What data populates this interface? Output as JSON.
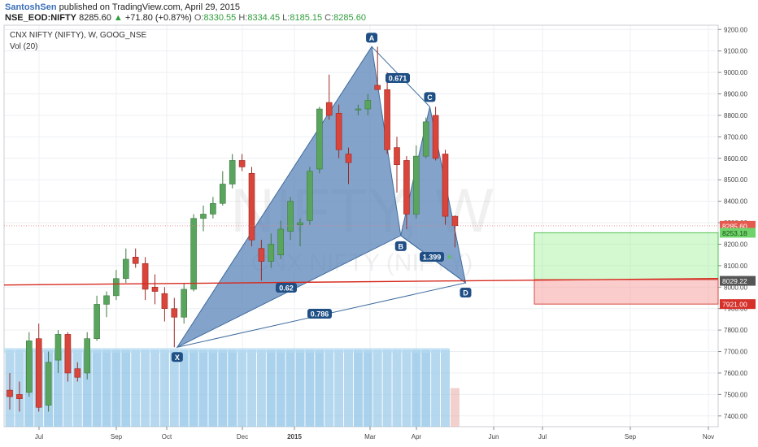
{
  "header": {
    "author": "SantoshSen",
    "published_text": "published on TradingView.com, April 29, 2015",
    "symbol": "NSE_EOD:NIFTY",
    "price": "8285.60",
    "change": "+71.80 (+0.87%)",
    "o_label": "O:",
    "o_value": "8330.55",
    "h_label": "H:",
    "h_value": "8334.45",
    "l_label": "L:",
    "l_value": "8185.15",
    "c_label": "C:",
    "c_value": "8285.60"
  },
  "legend": {
    "title": "CNX NIFTY (NIFTY), W, GOOG_NSE",
    "vol": "Vol (20)"
  },
  "watermark": {
    "big": "NIFTY, W",
    "small": "CNX NIFTY (NIFTY)"
  },
  "colors": {
    "up": "#5aa55e",
    "down": "#d9443b",
    "pattern": "#5b84b8",
    "support": "#d62a1e"
  },
  "chart_data": {
    "type": "candlestick",
    "ylim": [
      7350,
      9220
    ],
    "y_ticks": [
      "7400.00",
      "7500.00",
      "7600.00",
      "7700.00",
      "7800.00",
      "7900.00",
      "8000.00",
      "8100.00",
      "8200.00",
      "8300.00",
      "8400.00",
      "8500.00",
      "8600.00",
      "8700.00",
      "8800.00",
      "8900.00",
      "9000.00",
      "9100.00",
      "9200.00"
    ],
    "x_ticks": [
      "Jul",
      "Sep",
      "Oct",
      "Dec",
      "2015",
      "Mar",
      "Apr",
      "Jun",
      "Jul",
      "Sep",
      "Nov"
    ],
    "candles": [
      {
        "o": 7520,
        "h": 7600,
        "l": 7430,
        "c": 7490
      },
      {
        "o": 7500,
        "h": 7560,
        "l": 7420,
        "c": 7480
      },
      {
        "o": 7510,
        "h": 7790,
        "l": 7490,
        "c": 7750
      },
      {
        "o": 7760,
        "h": 7830,
        "l": 7420,
        "c": 7440
      },
      {
        "o": 7450,
        "h": 7700,
        "l": 7420,
        "c": 7650
      },
      {
        "o": 7660,
        "h": 7800,
        "l": 7600,
        "c": 7780
      },
      {
        "o": 7780,
        "h": 7790,
        "l": 7560,
        "c": 7600
      },
      {
        "o": 7620,
        "h": 7650,
        "l": 7560,
        "c": 7580
      },
      {
        "o": 7600,
        "h": 7790,
        "l": 7570,
        "c": 7760
      },
      {
        "o": 7760,
        "h": 7960,
        "l": 7750,
        "c": 7920
      },
      {
        "o": 7920,
        "h": 7980,
        "l": 7860,
        "c": 7960
      },
      {
        "o": 7960,
        "h": 8080,
        "l": 7940,
        "c": 8040
      },
      {
        "o": 8040,
        "h": 8180,
        "l": 8020,
        "c": 8130
      },
      {
        "o": 8140,
        "h": 8180,
        "l": 8090,
        "c": 8110
      },
      {
        "o": 8110,
        "h": 8140,
        "l": 7940,
        "c": 7990
      },
      {
        "o": 8000,
        "h": 8060,
        "l": 7920,
        "c": 7980
      },
      {
        "o": 7970,
        "h": 8000,
        "l": 7840,
        "c": 7900
      },
      {
        "o": 7900,
        "h": 7950,
        "l": 7720,
        "c": 7860
      },
      {
        "o": 7860,
        "h": 8020,
        "l": 7830,
        "c": 7990
      },
      {
        "o": 7990,
        "h": 8340,
        "l": 7980,
        "c": 8320
      },
      {
        "o": 8320,
        "h": 8380,
        "l": 8260,
        "c": 8340
      },
      {
        "o": 8340,
        "h": 8420,
        "l": 8320,
        "c": 8390
      },
      {
        "o": 8390,
        "h": 8540,
        "l": 8380,
        "c": 8480
      },
      {
        "o": 8480,
        "h": 8620,
        "l": 8460,
        "c": 8590
      },
      {
        "o": 8590,
        "h": 8620,
        "l": 8540,
        "c": 8560
      },
      {
        "o": 8530,
        "h": 8560,
        "l": 8190,
        "c": 8220
      },
      {
        "o": 8180,
        "h": 8220,
        "l": 8030,
        "c": 8120
      },
      {
        "o": 8120,
        "h": 8250,
        "l": 8090,
        "c": 8200
      },
      {
        "o": 8150,
        "h": 8310,
        "l": 8130,
        "c": 8270
      },
      {
        "o": 8260,
        "h": 8420,
        "l": 8220,
        "c": 8400
      },
      {
        "o": 8290,
        "h": 8320,
        "l": 8190,
        "c": 8300
      },
      {
        "o": 8310,
        "h": 8560,
        "l": 8290,
        "c": 8540
      },
      {
        "o": 8550,
        "h": 8840,
        "l": 8530,
        "c": 8830
      },
      {
        "o": 8860,
        "h": 8990,
        "l": 8780,
        "c": 8800
      },
      {
        "o": 8810,
        "h": 8850,
        "l": 8600,
        "c": 8640
      },
      {
        "o": 8620,
        "h": 8650,
        "l": 8480,
        "c": 8580
      },
      {
        "o": 8830,
        "h": 8850,
        "l": 8800,
        "c": 8830
      },
      {
        "o": 8830,
        "h": 8900,
        "l": 8800,
        "c": 8870
      },
      {
        "o": 8940,
        "h": 9120,
        "l": 8920,
        "c": 8920
      },
      {
        "o": 8920,
        "h": 9000,
        "l": 8620,
        "c": 8640
      },
      {
        "o": 8650,
        "h": 8700,
        "l": 8440,
        "c": 8570
      },
      {
        "o": 8590,
        "h": 8610,
        "l": 8270,
        "c": 8340
      },
      {
        "o": 8340,
        "h": 8660,
        "l": 8320,
        "c": 8610
      },
      {
        "o": 8610,
        "h": 8790,
        "l": 8600,
        "c": 8770
      },
      {
        "o": 8800,
        "h": 8840,
        "l": 8590,
        "c": 8600
      },
      {
        "o": 8620,
        "h": 8640,
        "l": 8290,
        "c": 8330
      },
      {
        "o": 8330,
        "h": 8334,
        "l": 8185,
        "c": 8286
      }
    ],
    "volume": [
      0.5,
      0.5,
      0.5,
      0.5,
      0.5,
      0.5,
      0.5,
      0.5,
      0.5,
      0.5,
      0.5,
      0.5,
      0.5,
      0.5,
      0.5,
      0.5,
      0.5,
      0.5,
      0.5,
      0.5,
      0.5,
      0.5,
      0.5,
      0.5,
      0.5,
      0.5,
      0.5,
      0.5,
      0.5,
      0.5,
      0.5,
      0.5,
      0.5,
      0.5,
      0.5,
      0.5,
      0.5,
      0.5,
      0.5,
      0.5,
      0.5,
      0.5,
      0.5,
      0.5,
      0.5,
      0.5,
      0.25
    ],
    "pattern_points": [
      {
        "name": "X",
        "price": 7720
      },
      {
        "name": "A",
        "price": 9120
      },
      {
        "name": "B",
        "price": 8240
      },
      {
        "name": "C",
        "price": 8840
      },
      {
        "name": "D",
        "price": 8020
      }
    ],
    "ratios": [
      "0.671",
      "0.62",
      "0.786",
      "1.399"
    ],
    "support_line": [
      8010,
      8040
    ],
    "zones": {
      "target": [
        8253.18,
        8035
      ],
      "stop": [
        8035,
        7921
      ]
    },
    "price_labels": [
      "8285.60",
      "8253.18",
      "8029.22",
      "7921.00"
    ]
  }
}
